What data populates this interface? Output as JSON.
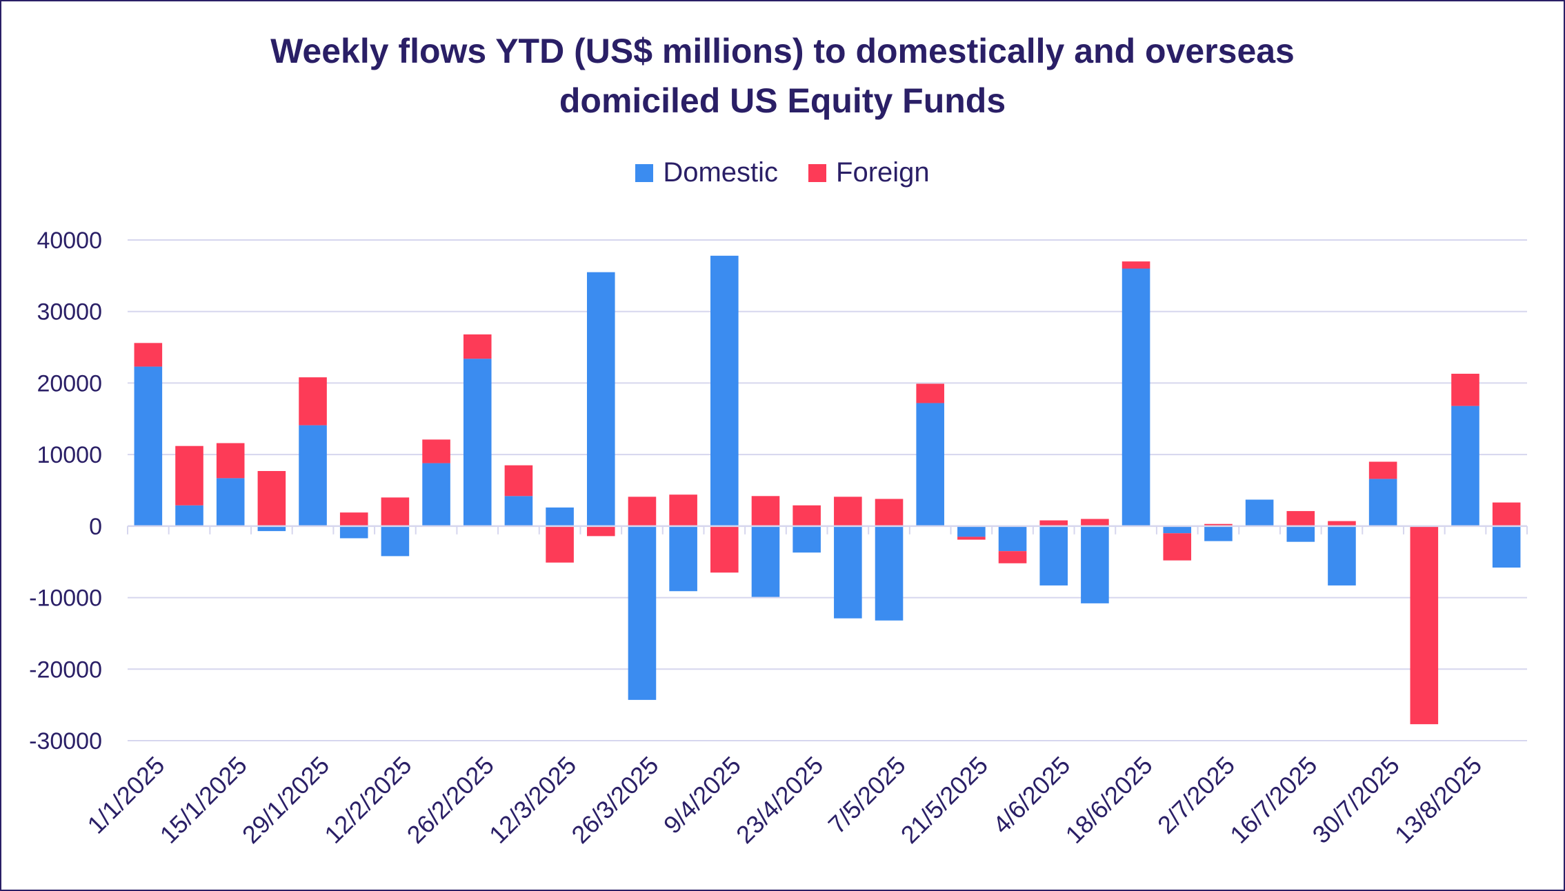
{
  "chart_data": {
    "type": "bar",
    "stacked": true,
    "title_lines": [
      "Weekly flows YTD (US$ millions) to domestically and overseas",
      "domiciled US Equity Funds"
    ],
    "legend": {
      "position": "top",
      "entries": [
        "Domestic",
        "Foreign"
      ]
    },
    "colors": {
      "Domestic": "#3b8cf0",
      "Foreign": "#fd3b57",
      "grid": "#d6d6ee",
      "text": "#2a1f66"
    },
    "ylim": [
      -30000,
      40000
    ],
    "yticks": [
      40000,
      30000,
      20000,
      10000,
      0,
      -10000,
      -20000,
      -30000
    ],
    "grid": true,
    "x_tick_labels": [
      "1/1/2025",
      "15/1/2025",
      "29/1/2025",
      "12/2/2025",
      "26/2/2025",
      "12/3/2025",
      "26/3/2025",
      "9/4/2025",
      "23/4/2025",
      "7/5/2025",
      "21/5/2025",
      "4/6/2025",
      "18/6/2025",
      "2/7/2025",
      "16/7/2025",
      "30/7/2025",
      "13/8/2025"
    ],
    "categories": [
      "1/1/2025",
      "8/1/2025",
      "15/1/2025",
      "22/1/2025",
      "29/1/2025",
      "5/2/2025",
      "12/2/2025",
      "19/2/2025",
      "26/2/2025",
      "5/3/2025",
      "12/3/2025",
      "19/3/2025",
      "26/3/2025",
      "2/4/2025",
      "9/4/2025",
      "16/4/2025",
      "23/4/2025",
      "30/4/2025",
      "7/5/2025",
      "14/5/2025",
      "21/5/2025",
      "28/5/2025",
      "4/6/2025",
      "11/6/2025",
      "18/6/2025",
      "25/6/2025",
      "2/7/2025",
      "9/7/2025",
      "16/7/2025",
      "23/7/2025",
      "30/7/2025",
      "6/8/2025",
      "13/8/2025",
      "20/8/2025"
    ],
    "series": [
      {
        "name": "Domestic",
        "values": [
          22300,
          2900,
          6700,
          -700,
          14100,
          -1700,
          -4200,
          8800,
          23400,
          4200,
          2600,
          35500,
          -24300,
          -9100,
          37800,
          -9900,
          -3700,
          -12900,
          -13200,
          17200,
          -1500,
          -3500,
          -8300,
          -10800,
          36000,
          -1000,
          -2100,
          3700,
          -2200,
          -8300,
          6600,
          0,
          16800,
          -5800
        ]
      },
      {
        "name": "Foreign",
        "values": [
          3300,
          8300,
          4900,
          7700,
          6700,
          1900,
          4000,
          3300,
          3400,
          4300,
          -5100,
          -1400,
          4100,
          4400,
          -6500,
          4200,
          2900,
          4100,
          3800,
          2700,
          -400,
          -1700,
          800,
          1000,
          1000,
          -3800,
          300,
          0,
          2100,
          700,
          2400,
          -27700,
          4500,
          3300
        ]
      }
    ]
  }
}
